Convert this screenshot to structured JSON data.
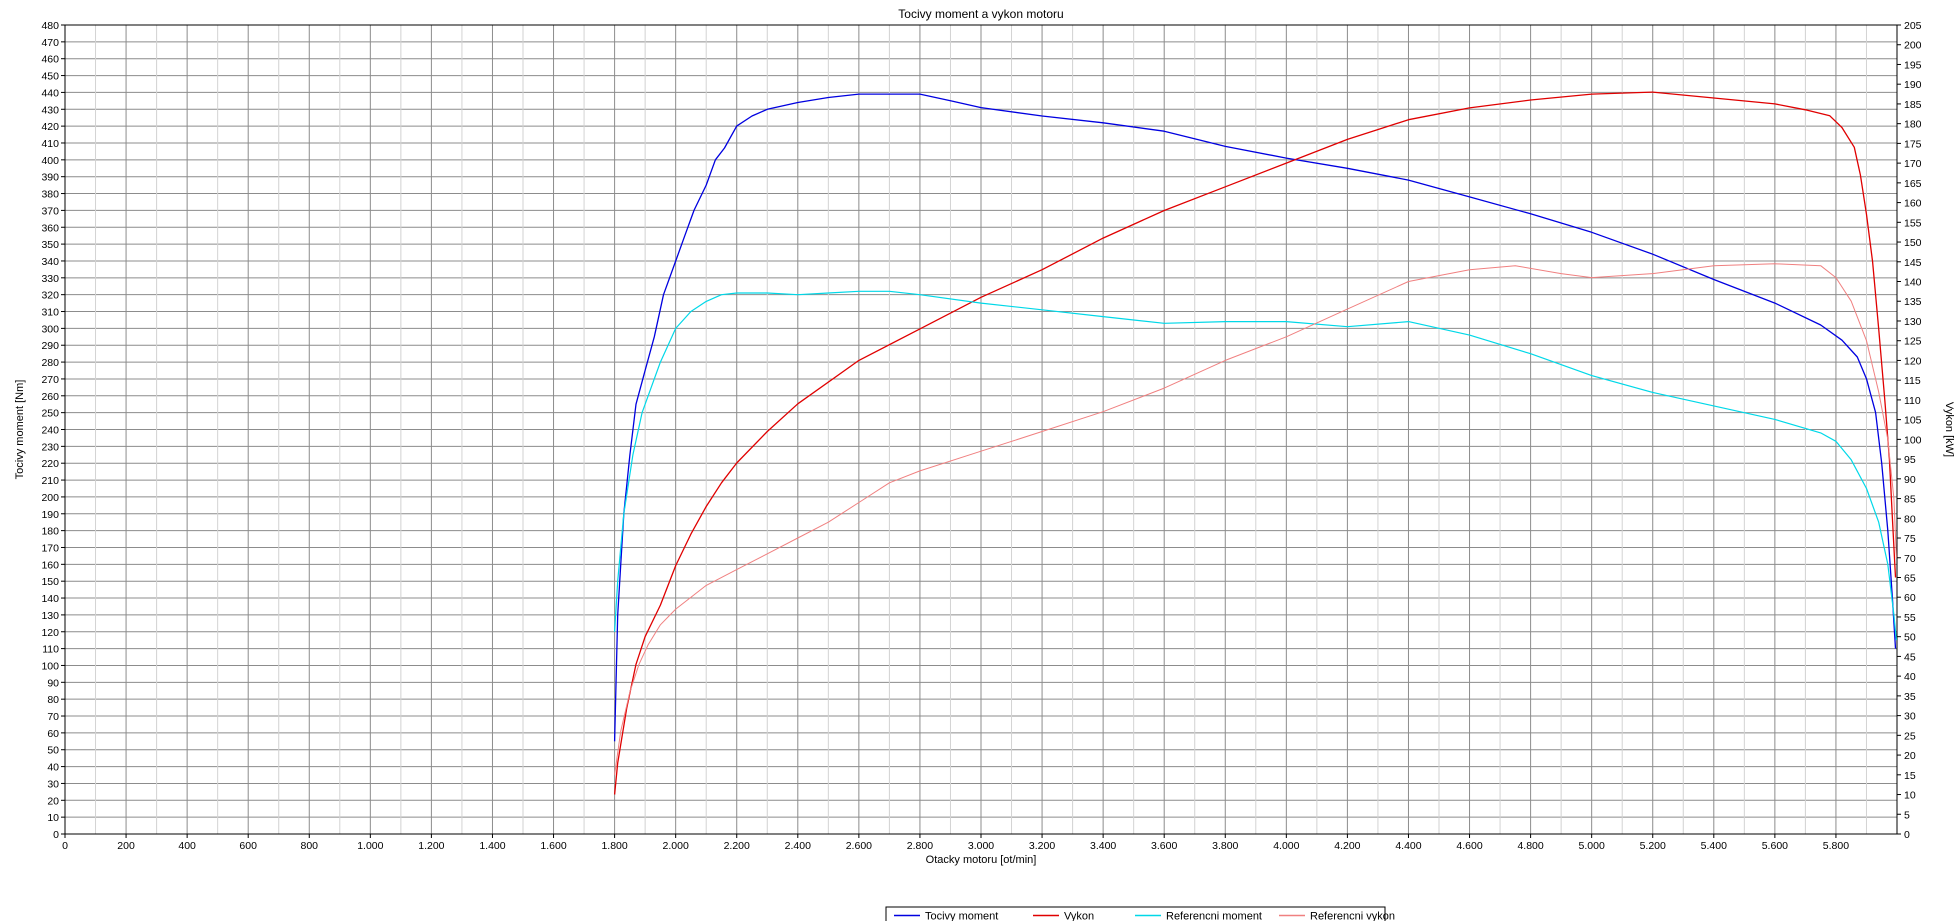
{
  "chart_data": {
    "type": "line",
    "title": "Tocivy moment a vykon motoru",
    "xlabel": "Otacky motoru [ot/min]",
    "ylabel": "Tocivy moment [Nm]",
    "y2label": "Vykon [kW]",
    "xlim": [
      0,
      6000
    ],
    "ylim": [
      0,
      480
    ],
    "y2lim": [
      0,
      205
    ],
    "grid": true,
    "legend_position": "bottom-center",
    "x_ticks": [
      "0",
      "200",
      "400",
      "600",
      "800",
      "1.000",
      "1.200",
      "1.400",
      "1.600",
      "1.800",
      "2.000",
      "2.200",
      "2.400",
      "2.600",
      "2.800",
      "3.000",
      "3.200",
      "3.400",
      "3.600",
      "3.800",
      "4.000",
      "4.200",
      "4.400",
      "4.600",
      "4.800",
      "5.000",
      "5.200",
      "5.400",
      "5.600",
      "5.800"
    ],
    "series": [
      {
        "name": "Tocivy moment",
        "axis": "left",
        "color": "#0000e0",
        "width": 1.3,
        "points": [
          [
            1800,
            55
          ],
          [
            1810,
            130
          ],
          [
            1830,
            190
          ],
          [
            1850,
            225
          ],
          [
            1870,
            255
          ],
          [
            1900,
            275
          ],
          [
            1930,
            295
          ],
          [
            1960,
            320
          ],
          [
            2000,
            340
          ],
          [
            2030,
            355
          ],
          [
            2060,
            370
          ],
          [
            2100,
            385
          ],
          [
            2130,
            400
          ],
          [
            2160,
            407
          ],
          [
            2200,
            420
          ],
          [
            2250,
            426
          ],
          [
            2300,
            430
          ],
          [
            2400,
            434
          ],
          [
            2500,
            437
          ],
          [
            2600,
            439
          ],
          [
            2800,
            439
          ],
          [
            2900,
            435
          ],
          [
            3000,
            431
          ],
          [
            3200,
            426
          ],
          [
            3400,
            422
          ],
          [
            3600,
            417
          ],
          [
            3800,
            408
          ],
          [
            4000,
            401
          ],
          [
            4200,
            395
          ],
          [
            4400,
            388
          ],
          [
            4600,
            378
          ],
          [
            4800,
            368
          ],
          [
            5000,
            357
          ],
          [
            5200,
            344
          ],
          [
            5400,
            329
          ],
          [
            5600,
            315
          ],
          [
            5750,
            302
          ],
          [
            5820,
            293
          ],
          [
            5870,
            283
          ],
          [
            5900,
            270
          ],
          [
            5930,
            250
          ],
          [
            5950,
            220
          ],
          [
            5970,
            180
          ],
          [
            5985,
            140
          ],
          [
            5995,
            110
          ]
        ]
      },
      {
        "name": "Vykon",
        "axis": "right",
        "color": "#e00000",
        "width": 1.3,
        "points": [
          [
            1800,
            10
          ],
          [
            1810,
            18
          ],
          [
            1840,
            32
          ],
          [
            1870,
            43
          ],
          [
            1900,
            50
          ],
          [
            1950,
            58
          ],
          [
            2000,
            68
          ],
          [
            2050,
            76
          ],
          [
            2100,
            83
          ],
          [
            2150,
            89
          ],
          [
            2200,
            94
          ],
          [
            2300,
            102
          ],
          [
            2400,
            109
          ],
          [
            2600,
            120
          ],
          [
            2800,
            128
          ],
          [
            3000,
            136
          ],
          [
            3200,
            143
          ],
          [
            3400,
            151
          ],
          [
            3600,
            158
          ],
          [
            3800,
            164
          ],
          [
            4000,
            170
          ],
          [
            4200,
            176
          ],
          [
            4400,
            181
          ],
          [
            4600,
            184
          ],
          [
            4800,
            186
          ],
          [
            5000,
            187.5
          ],
          [
            5200,
            188
          ],
          [
            5400,
            186.5
          ],
          [
            5600,
            185
          ],
          [
            5700,
            183.5
          ],
          [
            5780,
            182
          ],
          [
            5820,
            179
          ],
          [
            5860,
            174
          ],
          [
            5880,
            167
          ],
          [
            5900,
            157
          ],
          [
            5920,
            145
          ],
          [
            5940,
            128
          ],
          [
            5960,
            110
          ],
          [
            5975,
            95
          ],
          [
            5985,
            80
          ],
          [
            5995,
            65
          ]
        ]
      },
      {
        "name": "Referencni moment",
        "axis": "left",
        "color": "#00d8e8",
        "width": 1.2,
        "points": [
          [
            1800,
            120
          ],
          [
            1810,
            150
          ],
          [
            1830,
            190
          ],
          [
            1860,
            225
          ],
          [
            1890,
            250
          ],
          [
            1920,
            265
          ],
          [
            1950,
            280
          ],
          [
            1980,
            292
          ],
          [
            2000,
            300
          ],
          [
            2050,
            310
          ],
          [
            2100,
            316
          ],
          [
            2150,
            320
          ],
          [
            2200,
            321
          ],
          [
            2300,
            321
          ],
          [
            2400,
            320
          ],
          [
            2500,
            321
          ],
          [
            2600,
            322
          ],
          [
            2700,
            322
          ],
          [
            2800,
            320
          ],
          [
            3000,
            315
          ],
          [
            3200,
            311
          ],
          [
            3400,
            307
          ],
          [
            3600,
            303
          ],
          [
            3800,
            304
          ],
          [
            4000,
            304
          ],
          [
            4200,
            301
          ],
          [
            4400,
            304
          ],
          [
            4600,
            296
          ],
          [
            4800,
            285
          ],
          [
            5000,
            272
          ],
          [
            5200,
            262
          ],
          [
            5400,
            254
          ],
          [
            5600,
            246
          ],
          [
            5750,
            238
          ],
          [
            5800,
            233
          ],
          [
            5850,
            222
          ],
          [
            5900,
            205
          ],
          [
            5940,
            185
          ],
          [
            5970,
            160
          ],
          [
            5990,
            130
          ],
          [
            5998,
            115
          ]
        ]
      },
      {
        "name": "Referencni vykon",
        "axis": "right",
        "color": "#f08080",
        "width": 1.0,
        "points": [
          [
            1800,
            15
          ],
          [
            1820,
            26
          ],
          [
            1850,
            36
          ],
          [
            1880,
            43
          ],
          [
            1910,
            48
          ],
          [
            1950,
            53
          ],
          [
            2000,
            57
          ],
          [
            2100,
            63
          ],
          [
            2200,
            67
          ],
          [
            2300,
            71
          ],
          [
            2400,
            75
          ],
          [
            2500,
            79
          ],
          [
            2600,
            84
          ],
          [
            2700,
            89
          ],
          [
            2800,
            92
          ],
          [
            3000,
            97
          ],
          [
            3200,
            102
          ],
          [
            3400,
            107
          ],
          [
            3600,
            113
          ],
          [
            3800,
            120
          ],
          [
            4000,
            126
          ],
          [
            4200,
            133
          ],
          [
            4400,
            140
          ],
          [
            4600,
            143
          ],
          [
            4750,
            144
          ],
          [
            4900,
            142
          ],
          [
            5000,
            141
          ],
          [
            5200,
            142
          ],
          [
            5400,
            144
          ],
          [
            5600,
            144.5
          ],
          [
            5750,
            144
          ],
          [
            5800,
            141
          ],
          [
            5850,
            135
          ],
          [
            5900,
            125
          ],
          [
            5940,
            112
          ],
          [
            5970,
            100
          ],
          [
            5990,
            85
          ],
          [
            5998,
            70
          ]
        ]
      }
    ]
  }
}
